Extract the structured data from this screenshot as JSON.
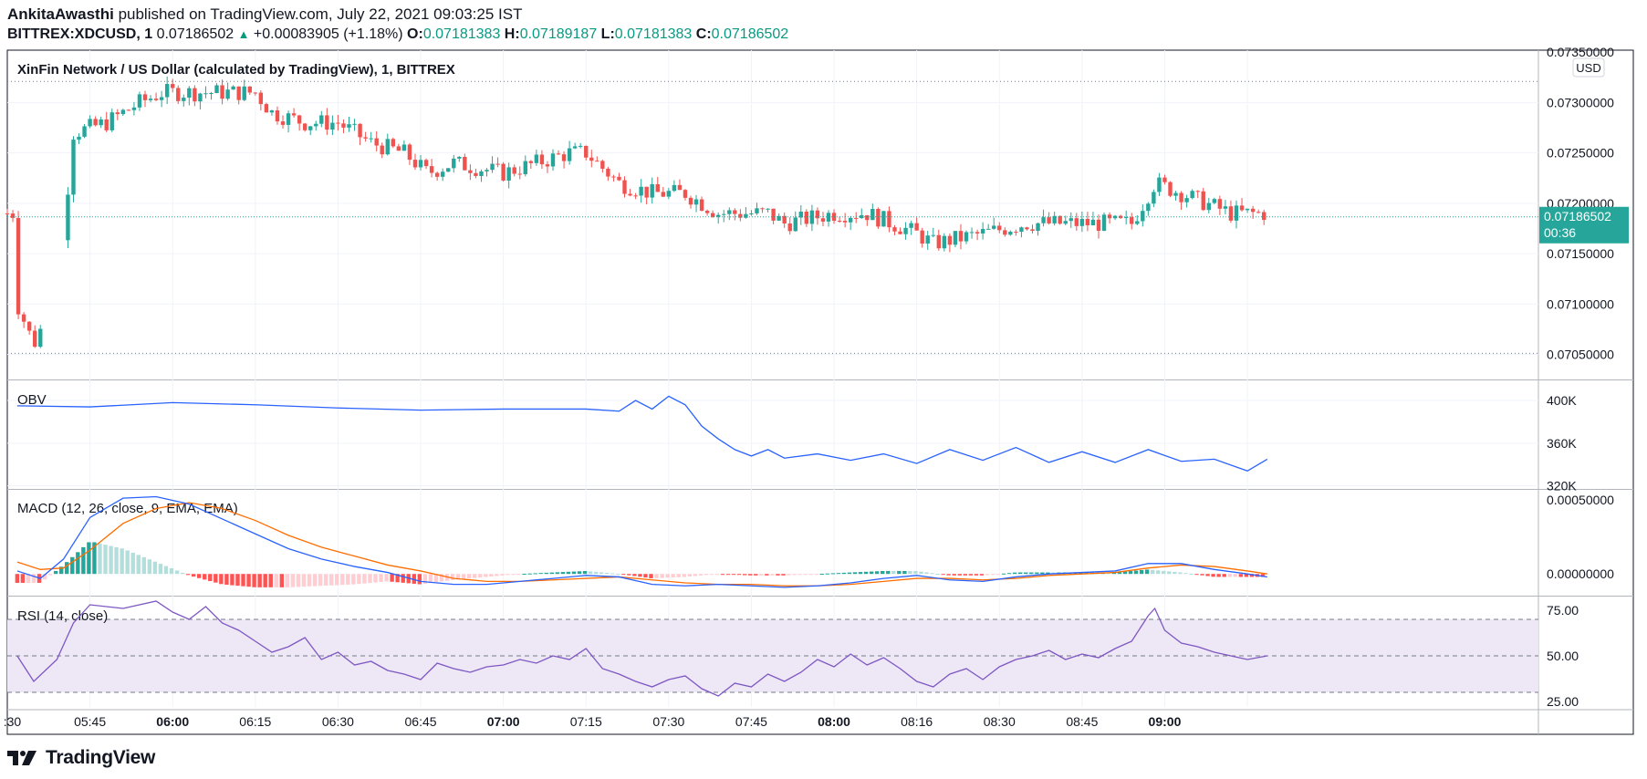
{
  "header": {
    "author": "AnkitaAwasthi",
    "published_text": "published on TradingView.com, July 22, 2021 09:03:25 IST",
    "symbol_line": "BITTREX:XDCUSD, 1",
    "last_price": "0.07186502",
    "change": "+0.00083905 (+1.18%)",
    "o_label": "O:",
    "o_value": "0.07181383",
    "h_label": "H:",
    "h_value": "0.07189187",
    "l_label": "L:",
    "l_value": "0.07181383",
    "c_label": "C:",
    "c_value": "0.07186502"
  },
  "brand": {
    "name": "TradingView"
  },
  "colors": {
    "up": "#26a69a",
    "down": "#ef5350",
    "obv": "#2962ff",
    "macd": "#2962ff",
    "signal": "#ff6d00",
    "rsi": "#7e57c2",
    "rsi_band": "#ede7f6"
  },
  "chart_data": [
    {
      "type": "candlestick",
      "title": "XinFin Network / US Dollar (calculated by TradingView), 1, BITTREX",
      "currency": "USD",
      "yticks": [
        "0.07350000",
        "0.07300000",
        "0.07250000",
        "0.07200000",
        "0.07150000",
        "0.07100000",
        "0.07050000"
      ],
      "ylim": [
        0.07026,
        0.07352
      ],
      "last_price_label": "0.07186502",
      "countdown_label": "00:36",
      "close_path": [
        [
          5.28,
          0.071
        ],
        [
          5.33,
          0.0706
        ],
        [
          5.4,
          0.0711
        ],
        [
          5.45,
          0.0727
        ],
        [
          5.55,
          0.0728
        ],
        [
          5.65,
          0.073
        ],
        [
          5.72,
          0.0731
        ],
        [
          5.85,
          0.0731
        ],
        [
          6.0,
          0.0731
        ],
        [
          6.05,
          0.0729
        ],
        [
          6.15,
          0.0728
        ],
        [
          6.25,
          0.0728
        ],
        [
          6.35,
          0.0726
        ],
        [
          6.45,
          0.0725
        ],
        [
          6.52,
          0.0723
        ],
        [
          6.6,
          0.0724
        ],
        [
          6.75,
          0.0723
        ],
        [
          6.85,
          0.0724
        ],
        [
          6.95,
          0.0725
        ],
        [
          7.0,
          0.0725
        ],
        [
          7.1,
          0.0722
        ],
        [
          7.2,
          0.0721
        ],
        [
          7.3,
          0.0721
        ],
        [
          7.4,
          0.0719
        ],
        [
          7.55,
          0.0719
        ],
        [
          7.6,
          0.0718
        ],
        [
          7.75,
          0.0719
        ],
        [
          7.85,
          0.0719
        ],
        [
          8.0,
          0.0717
        ],
        [
          8.05,
          0.0716
        ],
        [
          8.2,
          0.0717
        ],
        [
          8.33,
          0.0718
        ],
        [
          8.45,
          0.0718
        ],
        [
          8.65,
          0.0718
        ],
        [
          8.72,
          0.0722
        ],
        [
          8.8,
          0.0721
        ],
        [
          8.95,
          0.0719
        ],
        [
          9.05,
          0.0719
        ]
      ]
    },
    {
      "type": "line",
      "title": "OBV",
      "yticks": [
        "400K",
        "360K",
        "320K"
      ],
      "ylim": [
        318000,
        418000
      ],
      "x": [
        5.28,
        5.5,
        5.75,
        6.0,
        6.25,
        6.5,
        6.75,
        7.0,
        7.1,
        7.15,
        7.2,
        7.25,
        7.3,
        7.35,
        7.4,
        7.45,
        7.5,
        7.55,
        7.6,
        7.7,
        7.8,
        7.9,
        8.0,
        8.1,
        8.2,
        8.3,
        8.4,
        8.5,
        8.6,
        8.7,
        8.8,
        8.9,
        9.0,
        9.06
      ],
      "values": [
        395000,
        394000,
        398000,
        396000,
        393000,
        391000,
        392000,
        392000,
        390000,
        400000,
        392000,
        404000,
        396000,
        376000,
        364000,
        354000,
        348000,
        354000,
        346000,
        350000,
        344000,
        350000,
        341000,
        354000,
        344000,
        356000,
        342000,
        352000,
        342000,
        354000,
        343000,
        345000,
        334000,
        345000
      ]
    },
    {
      "type": "macd",
      "title": "MACD (12, 26, close, 9, EMA, EMA)",
      "yticks": [
        "0.00050000",
        "0.00000000"
      ],
      "ylim": [
        -0.00014,
        0.00056
      ],
      "x": [
        5.28,
        5.35,
        5.42,
        5.5,
        5.6,
        5.7,
        5.8,
        5.9,
        6.0,
        6.1,
        6.2,
        6.3,
        6.4,
        6.5,
        6.6,
        6.7,
        6.8,
        6.9,
        7.0,
        7.1,
        7.2,
        7.3,
        7.4,
        7.5,
        7.6,
        7.7,
        7.8,
        7.9,
        8.0,
        8.1,
        8.2,
        8.3,
        8.4,
        8.5,
        8.6,
        8.7,
        8.8,
        8.9,
        9.0,
        9.06
      ],
      "macd": [
        2e-05,
        -3e-05,
        0.0001,
        0.00038,
        0.00051,
        0.00052,
        0.00047,
        0.00037,
        0.00027,
        0.00017,
        0.0001,
        5e-05,
        1e-05,
        -5e-05,
        -7e-05,
        -7e-05,
        -5e-05,
        -3e-05,
        -1e-05,
        -2e-05,
        -7e-05,
        -8e-05,
        -7e-05,
        -8e-05,
        -9e-05,
        -8e-05,
        -6e-05,
        -3e-05,
        -1e-05,
        -4e-05,
        -5e-05,
        -2e-05,
        0.0,
        1e-05,
        2e-05,
        7e-05,
        7e-05,
        3e-05,
        0.0,
        -2e-05
      ],
      "signal": [
        8e-05,
        3e-05,
        4e-05,
        0.00016,
        0.00034,
        0.00044,
        0.00048,
        0.00044,
        0.00036,
        0.00026,
        0.00018,
        0.00012,
        6e-05,
        2e-05,
        -3e-05,
        -5e-05,
        -5e-05,
        -4e-05,
        -3e-05,
        -2e-05,
        -4e-05,
        -6e-05,
        -7e-05,
        -7e-05,
        -8e-05,
        -8e-05,
        -7e-05,
        -5e-05,
        -3e-05,
        -3e-05,
        -4e-05,
        -3e-05,
        -1e-05,
        0.0,
        1e-05,
        4e-05,
        6e-05,
        5e-05,
        2e-05,
        0.0
      ]
    },
    {
      "type": "line",
      "title": "RSI (14, close)",
      "yticks": [
        "75.00",
        "50.00",
        "25.00"
      ],
      "ylim": [
        22,
        82
      ],
      "bands": [
        30,
        50,
        70
      ],
      "x": [
        5.28,
        5.33,
        5.4,
        5.45,
        5.5,
        5.6,
        5.7,
        5.75,
        5.8,
        5.85,
        5.9,
        5.95,
        6.0,
        6.05,
        6.1,
        6.15,
        6.2,
        6.25,
        6.3,
        6.35,
        6.4,
        6.45,
        6.5,
        6.55,
        6.6,
        6.65,
        6.7,
        6.75,
        6.8,
        6.85,
        6.9,
        6.95,
        7.0,
        7.05,
        7.1,
        7.15,
        7.2,
        7.25,
        7.3,
        7.35,
        7.4,
        7.45,
        7.5,
        7.55,
        7.6,
        7.65,
        7.7,
        7.75,
        7.8,
        7.85,
        7.9,
        7.95,
        8.0,
        8.05,
        8.1,
        8.15,
        8.2,
        8.25,
        8.3,
        8.35,
        8.4,
        8.45,
        8.5,
        8.55,
        8.6,
        8.65,
        8.7,
        8.72,
        8.75,
        8.8,
        8.85,
        8.9,
        8.95,
        9.0,
        9.06
      ],
      "values": [
        50,
        36,
        48,
        68,
        78,
        76,
        80,
        74,
        70,
        77,
        68,
        64,
        58,
        52,
        55,
        60,
        48,
        52,
        45,
        47,
        42,
        40,
        37,
        46,
        43,
        41,
        44,
        45,
        48,
        46,
        50,
        48,
        54,
        43,
        40,
        36,
        33,
        37,
        39,
        32,
        28,
        35,
        33,
        40,
        36,
        41,
        48,
        44,
        51,
        45,
        49,
        43,
        36,
        33,
        40,
        43,
        37,
        44,
        48,
        50,
        53,
        48,
        51,
        49,
        54,
        58,
        72,
        76,
        64,
        57,
        55,
        52,
        50,
        48,
        50
      ]
    }
  ],
  "x_axis": {
    "labels": [
      ":30",
      "05:45",
      "06:00",
      "06:15",
      "06:30",
      "06:45",
      "07:00",
      "07:15",
      "07:30",
      "07:45",
      "08:00",
      "08:16",
      "08:30",
      "08:45",
      "09:00"
    ],
    "bold": [
      "06:00",
      "07:00",
      "08:00",
      "09:00"
    ]
  }
}
